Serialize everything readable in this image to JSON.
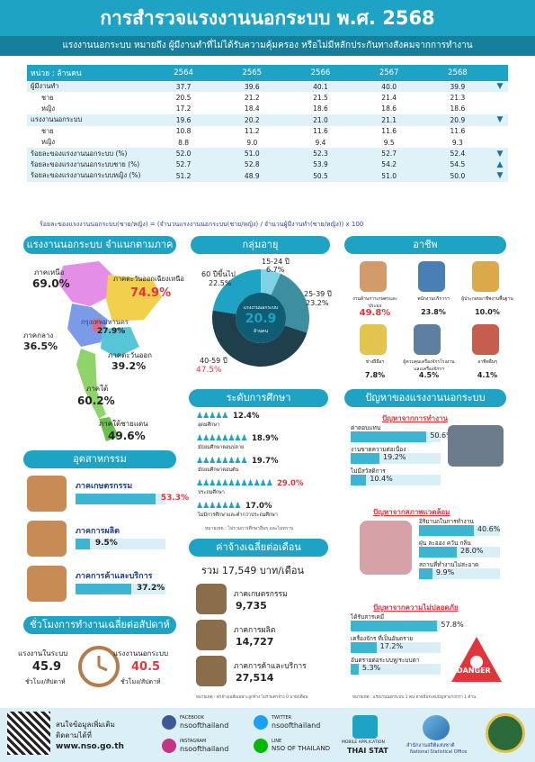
{
  "title": "การสำรวจแรงงานนอกระบบ พ.ศ. 2568",
  "subtitle": "แรงงานนอกระบบ หมายถึง ผู้มีงานทำที่ไม่ได้รับความคุ้มครอง หรือไม่มีหลักประกันทางสังคมจากการทำงาน",
  "table": {
    "unit": "หน่วย : ล้านคน",
    "years": [
      "2564",
      "2565",
      "2566",
      "2567",
      "2568"
    ],
    "rows": [
      {
        "label": "ผู้มีงานทำ",
        "values": [
          "37.7",
          "39.6",
          "40.1",
          "40.0",
          "39.9"
        ],
        "trend": "down",
        "hl": true
      },
      {
        "label": "ชาย",
        "values": [
          "20.5",
          "21.2",
          "21.5",
          "21.4",
          "21.3"
        ],
        "indent": true
      },
      {
        "label": "หญิง",
        "values": [
          "17.2",
          "18.4",
          "18.6",
          "18.6",
          "18.6"
        ],
        "indent": true
      },
      {
        "label": "แรงงานนอกระบบ",
        "values": [
          "19.6",
          "20.2",
          "21.0",
          "21.1",
          "20.9"
        ],
        "trend": "down",
        "hl": true
      },
      {
        "label": "ชาย",
        "values": [
          "10.8",
          "11.2",
          "11.6",
          "11.6",
          "11.6"
        ],
        "indent": true
      },
      {
        "label": "หญิง",
        "values": [
          "8.8",
          "9.0",
          "9.4",
          "9.5",
          "9.3"
        ],
        "indent": true
      },
      {
        "label": "ร้อยละของแรงงานนอกระบบ (%)",
        "values": [
          "52.0",
          "51.0",
          "52.3",
          "52.7",
          "52.4"
        ],
        "trend": "down",
        "hl": true
      },
      {
        "label": "ร้อยละของแรงงานนอกระบบชาย (%)",
        "values": [
          "52.7",
          "52.8",
          "53.9",
          "54.2",
          "54.5"
        ],
        "trend": "up",
        "hl": true
      },
      {
        "label": "ร้อยละของแรงงานนอกระบบหญิง (%)",
        "values": [
          "51.2",
          "48.9",
          "50.5",
          "51.0",
          "50.0"
        ],
        "trend": "down",
        "hl": true
      }
    ],
    "formula": "ร้อยละของแรงงานนอกระบบ(ชาย/หญิง)  =  (จำนวนแรงงานนอกระบบ(ชาย/หญิง) / จำนวนผู้มีงานทำ(ชาย/หญิง)) x 100"
  },
  "region": {
    "title": "แรงงานนอกระบบ จำแนกตามภาค",
    "items": [
      {
        "name": "ภาคเหนือ",
        "value": "69.0%"
      },
      {
        "name": "ภาคตะวันออกเฉียงเหนือ",
        "value": "74.9%"
      },
      {
        "name": "กรุงเทพมหานคร",
        "value": "27.9%"
      },
      {
        "name": "ภาคกลาง",
        "value": "36.5%"
      },
      {
        "name": "ภาคตะวันออก",
        "value": "39.2%"
      },
      {
        "name": "ภาคใต้",
        "value": "60.2%"
      },
      {
        "name": "ภาคใต้ชายแดน",
        "value": "49.6%"
      }
    ]
  },
  "age": {
    "title": "กลุ่มอายุ",
    "center_label": "แรงงานนอกระบบ",
    "center_value": "20.9",
    "center_unit": "ล้านคน",
    "chart_data": {
      "type": "pie",
      "categories": [
        "15-24 ปี",
        "25-39 ปี",
        "40-59 ปี",
        "60 ปีขึ้นไป"
      ],
      "values": [
        6.7,
        23.2,
        47.5,
        22.5
      ],
      "labels": [
        "15-24 ปี",
        "25-39 ปี",
        "40-59 ปี",
        "60 ปีขึ้นไป"
      ],
      "value_labels": [
        "6.7%",
        "23.2%",
        "47.5%",
        "22.5%"
      ],
      "colors": [
        "#7fd3e6",
        "#3d8fa0",
        "#1f3f4d",
        "#1fa3c4"
      ]
    }
  },
  "occupation": {
    "title": "อาชีพ",
    "items": [
      {
        "name": "งานด้านการเกษตรและประมง",
        "value": "49.8%"
      },
      {
        "name": "พนักงานบริการฯ",
        "value": "23.8%"
      },
      {
        "name": "ผู้ประกอบอาชีพงานพื้นฐาน",
        "value": "10.0%"
      },
      {
        "name": "ช่างฝีมือฯ",
        "value": "7.8%"
      },
      {
        "name": "ผู้ควบคุมเครื่องจักรโรงงาน และเครื่องจักรฯ",
        "value": "4.5%"
      },
      {
        "name": "อาชีพอื่นๆ",
        "value": "4.1%"
      }
    ]
  },
  "industry": {
    "title": "อุตสาหกรรม",
    "items": [
      {
        "name": "ภาคเกษตรกรรม",
        "value": "53.3%",
        "frac": 0.533
      },
      {
        "name": "ภาคการผลิต",
        "value": "9.5%",
        "frac": 0.095
      },
      {
        "name": "ภาคการค้าและบริการ",
        "value": "37.2%",
        "frac": 0.372
      }
    ]
  },
  "education": {
    "title": "ระดับการศึกษา",
    "note": "หมายเหตุ : ไม่รวมการศึกษาอื่นๆ และไม่ทราบ",
    "items": [
      {
        "name": "อุดมศึกษา",
        "value": "12.4%"
      },
      {
        "name": "มัธยมศึกษาตอนปลาย",
        "value": "18.9%"
      },
      {
        "name": "มัธยมศึกษาตอนต้น",
        "value": "19.7%"
      },
      {
        "name": "ประถมศึกษา",
        "value": "29.0%"
      },
      {
        "name": "ไม่มีการศึกษาและต่ำกว่าประถมศึกษา",
        "value": "17.0%"
      }
    ]
  },
  "problems": {
    "title": "ปัญหาของแรงงานนอกระบบ",
    "note": "หมายเหตุ : แรงงานนอกระบบ 1 คน อาจมีประสบปัญหามากกว่า 1 ด้าน",
    "groups": [
      {
        "title": "ปัญหาจากการทำงาน",
        "items": [
          {
            "name": "ค่าตอบแทน",
            "value": "50.6%",
            "frac": 0.506
          },
          {
            "name": "งานขาดความต่อเนื่อง",
            "value": "19.2%",
            "frac": 0.192
          },
          {
            "name": "ไม่มีสวัสดิการ",
            "value": "10.4%",
            "frac": 0.104
          }
        ]
      },
      {
        "title": "ปัญหาจากสภาพแวดล้อม",
        "items": [
          {
            "name": "อิริยาบถในการทำงาน",
            "value": "40.6%",
            "frac": 0.406
          },
          {
            "name": "ฝุ่น ละออง ควัน กลิ่น",
            "value": "28.0%",
            "frac": 0.28
          },
          {
            "name": "สถานที่ทำงานไม่สะอาด",
            "value": "9.9%",
            "frac": 0.099
          }
        ]
      },
      {
        "title": "ปัญหาจากความไม่ปลอดภัย",
        "items": [
          {
            "name": "ได้รับสารเคมี",
            "value": "57.8%",
            "frac": 0.578
          },
          {
            "name": "เครื่องจักร ที่เป็นอันตราย",
            "value": "17.2%",
            "frac": 0.172
          },
          {
            "name": "อันตรายต่อระบบหู/ระบบตา",
            "value": "5.3%",
            "frac": 0.053
          }
        ]
      }
    ],
    "danger": "DANGER"
  },
  "wage": {
    "title": "ค่าจ้างเฉลี่ยต่อเดือน",
    "total": "รวม  17,549 บาท/เดือน",
    "note": "หมายเหตุ : ค่าจ้างเฉลี่ยเฉพาะลูกจ้าง ไม่รวมค่าจ้าง 0 บาท/เดือน",
    "items": [
      {
        "name": "ภาคเกษตรกรรม",
        "value": "9,735"
      },
      {
        "name": "ภาคการผลิต",
        "value": "14,727"
      },
      {
        "name": "ภาคการค้าและบริการ",
        "value": "27,514"
      }
    ]
  },
  "hours": {
    "title": "ชั่วโมงการทำงานเฉลี่ยต่อสัปดาห์",
    "formal_label": "แรงงานในระบบ",
    "formal_value": "45.9",
    "informal_label": "แรงงานนอกระบบ",
    "informal_value": "40.5",
    "unit": "ชั่วโมง/สัปดาห์"
  },
  "footer": {
    "more": "สนใจข้อมูลเพิ่มเติม",
    "contact": "ติดตามได้ที่",
    "url": "www.nso.go.th",
    "facebook_label": "FACEBOOK",
    "facebook": "nsoofthailand",
    "twitter_label": "TWITTER",
    "twitter": "nsoofthailand",
    "instagram_label": "INSTAGRAM",
    "instagram": "nsoofthailand",
    "line_label": "LINE",
    "line": "NSO OF THAILAND",
    "app_label": "MOBILE APPLICATION",
    "app": "THAI STAT",
    "org": "สำนักงานสถิติแห่งชาติ",
    "org_en": "National Statistical Office"
  }
}
